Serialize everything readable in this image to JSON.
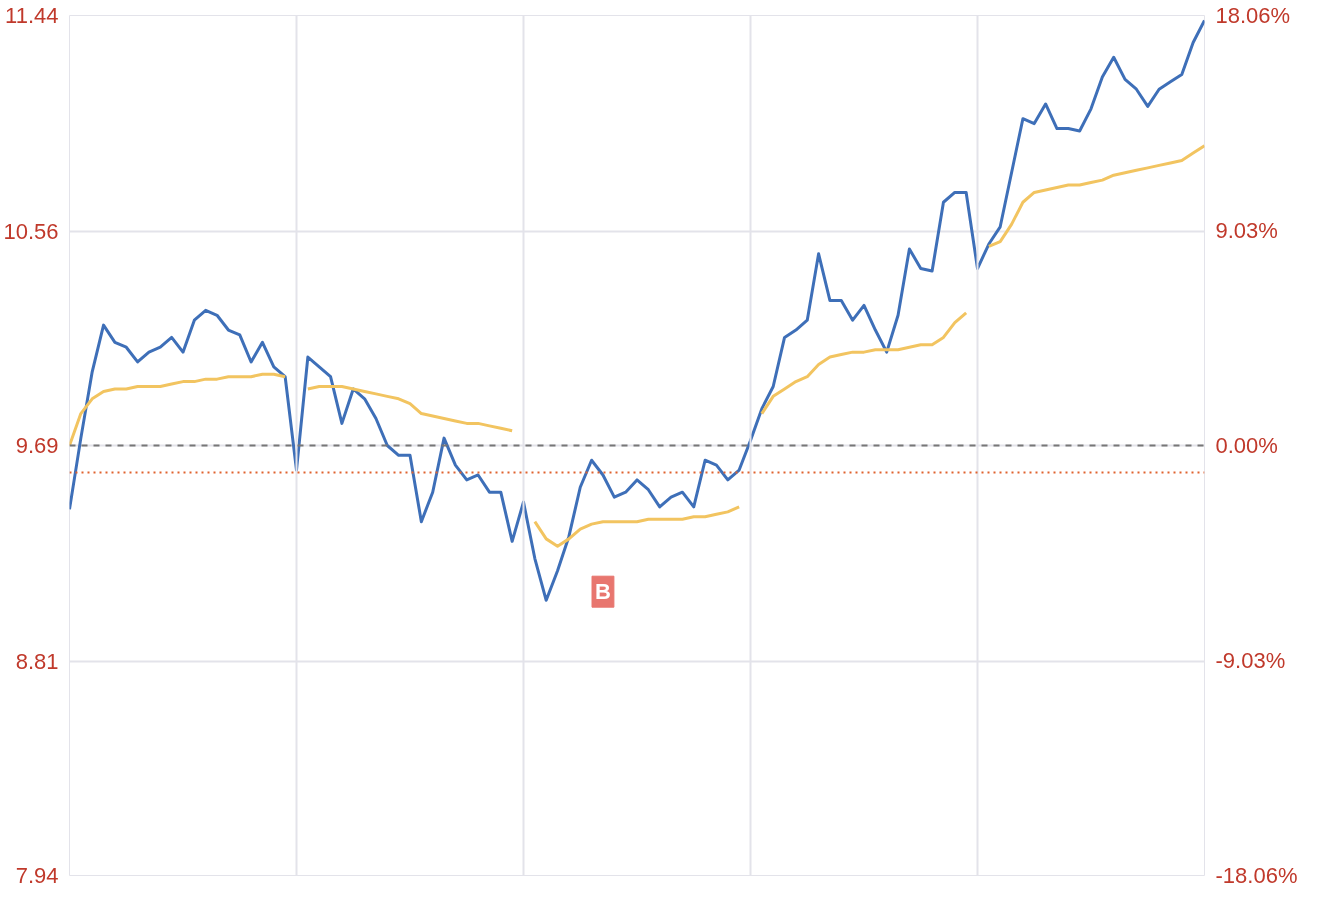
{
  "chart_data": {
    "type": "line",
    "categories": [
      null,
      null,
      null,
      null,
      null,
      null,
      null,
      null,
      null,
      null,
      null,
      null,
      null,
      null,
      null,
      null,
      null,
      null,
      null,
      null,
      null,
      null,
      null,
      null,
      null,
      null,
      null,
      null,
      null,
      null,
      null,
      null,
      null,
      null,
      null,
      null,
      null,
      null,
      null,
      null,
      null,
      null,
      null,
      null,
      null,
      null,
      null,
      null,
      null,
      null,
      null,
      null,
      null,
      null,
      null,
      null,
      null,
      null,
      null,
      null,
      null,
      null,
      null,
      null,
      null,
      null,
      null,
      null,
      null,
      null,
      null,
      null,
      null,
      null,
      null,
      null,
      null,
      null,
      null,
      null,
      null,
      null,
      null,
      null,
      null,
      null,
      null,
      null,
      null,
      null,
      null,
      null,
      null,
      null,
      null,
      null,
      null,
      null,
      null,
      null,
      null
    ],
    "ylim": [
      7.94,
      11.44
    ],
    "yticks": [
      7.94,
      8.81,
      9.69,
      10.56,
      11.44
    ],
    "y2lim": [
      -18.06,
      18.06
    ],
    "y2ticks": [
      {
        "value": -18.06,
        "label": "-18.06%"
      },
      {
        "value": -9.03,
        "label": "-9.03%"
      },
      {
        "value": 0,
        "label": "0.00%"
      },
      {
        "value": 9.03,
        "label": "9.03%"
      },
      {
        "value": 18.06,
        "label": "18.06%"
      }
    ],
    "grid": true,
    "line_style": "solid",
    "series": [
      {
        "color": "#3e6fb8",
        "values": [
          9.43,
          9.72,
          9.99,
          10.18,
          10.11,
          10.09,
          10.03,
          10.07,
          10.09,
          10.13,
          10.07,
          10.2,
          10.24,
          10.22,
          10.16,
          10.14,
          10.03,
          10.11,
          10.01,
          9.97,
          9.59,
          10.05,
          10.01,
          9.97,
          9.78,
          9.92,
          9.88,
          9.8,
          9.69,
          9.65,
          9.65,
          9.38,
          9.5,
          9.72,
          9.61,
          9.55,
          9.57,
          9.5,
          9.5,
          9.3,
          9.46,
          9.23,
          9.06,
          9.18,
          9.32,
          9.52,
          9.63,
          9.57,
          9.48,
          9.5,
          9.55,
          9.51,
          9.44,
          9.48,
          9.5,
          9.44,
          9.63,
          9.61,
          9.55,
          9.59,
          9.71,
          9.84,
          9.93,
          10.13,
          10.16,
          10.2,
          10.47,
          10.28,
          10.28,
          10.2,
          10.26,
          10.16,
          10.07,
          10.22,
          10.49,
          10.41,
          10.4,
          10.68,
          10.72,
          10.72,
          10.41,
          10.51,
          10.58,
          10.8,
          11.02,
          11.0,
          11.08,
          10.98,
          10.98,
          10.97,
          11.06,
          11.19,
          11.27,
          11.18,
          11.14,
          11.07,
          11.14,
          11.17,
          11.2,
          11.33,
          11.42
        ]
      },
      {
        "color": "#f2c460",
        "values": [
          9.69,
          9.82,
          9.88,
          9.91,
          9.92,
          9.92,
          9.93,
          9.93,
          9.93,
          9.94,
          9.95,
          9.95,
          9.96,
          9.96,
          9.97,
          9.97,
          9.97,
          9.98,
          9.98,
          9.97,
          null,
          9.92,
          9.93,
          9.93,
          9.93,
          9.92,
          9.91,
          9.9,
          9.89,
          9.88,
          9.86,
          9.82,
          9.81,
          9.8,
          9.79,
          9.78,
          9.78,
          9.77,
          9.76,
          9.75,
          null,
          9.38,
          9.31,
          9.28,
          9.31,
          9.35,
          9.37,
          9.38,
          9.38,
          9.38,
          9.38,
          9.39,
          9.39,
          9.39,
          9.39,
          9.4,
          9.4,
          9.41,
          9.42,
          9.44,
          null,
          9.82,
          9.89,
          9.92,
          9.95,
          9.97,
          10.02,
          10.05,
          10.06,
          10.07,
          10.07,
          10.08,
          10.08,
          10.08,
          10.09,
          10.1,
          10.1,
          10.13,
          10.19,
          10.23,
          null,
          10.5,
          10.52,
          10.59,
          10.68,
          10.72,
          10.73,
          10.74,
          10.75,
          10.75,
          10.76,
          10.77,
          10.79,
          10.8,
          10.81,
          10.82,
          10.83,
          10.84,
          10.85,
          10.88,
          10.91
        ]
      }
    ],
    "ref_lines": [
      {
        "axis": "y",
        "value": 9.69,
        "color": "#777777",
        "line_style": "dashed"
      },
      {
        "axis": "y",
        "value": 9.58,
        "color": "#e0622e",
        "line_style": "dotted"
      }
    ],
    "annotations": [
      "B"
    ]
  }
}
